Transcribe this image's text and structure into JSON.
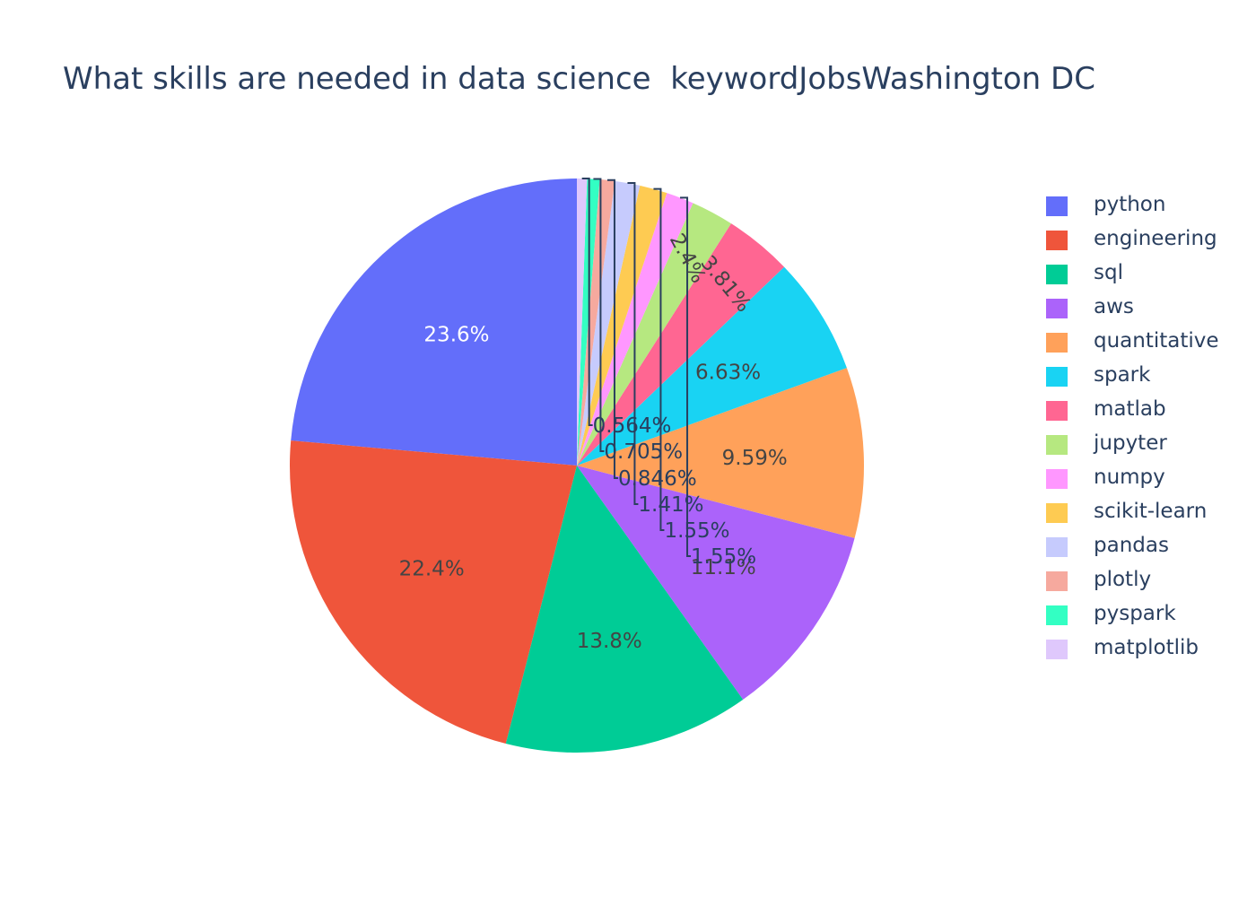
{
  "chart_data": {
    "type": "pie",
    "title": "What skills are needed in data science  keywordJobsWashington DC",
    "legend_position": "right",
    "categories": [
      "python",
      "engineering",
      "sql",
      "aws",
      "quantitative",
      "spark",
      "matlab",
      "jupyter",
      "numpy",
      "scikit-learn",
      "pandas",
      "plotly",
      "pyspark",
      "matplotlib"
    ],
    "values": [
      23.6,
      22.4,
      13.8,
      11.1,
      9.59,
      6.63,
      3.81,
      2.4,
      1.55,
      1.55,
      1.41,
      0.846,
      0.705,
      0.564
    ],
    "labels": [
      "23.6%",
      "22.4%",
      "13.8%",
      "11.1%",
      "9.59%",
      "6.63%",
      "3.81%",
      "2.4%",
      "1.55%",
      "1.55%",
      "1.41%",
      "0.846%",
      "0.705%",
      "0.564%"
    ],
    "colors": [
      "#636efa",
      "#ef553b",
      "#00cc96",
      "#ab63fa",
      "#ffa15a",
      "#19d3f3",
      "#ff6692",
      "#b6e880",
      "#ff97ff",
      "#fecb52",
      "#c6cbfd",
      "#f6a99e",
      "#33ffc3",
      "#dfc8fc"
    ]
  }
}
